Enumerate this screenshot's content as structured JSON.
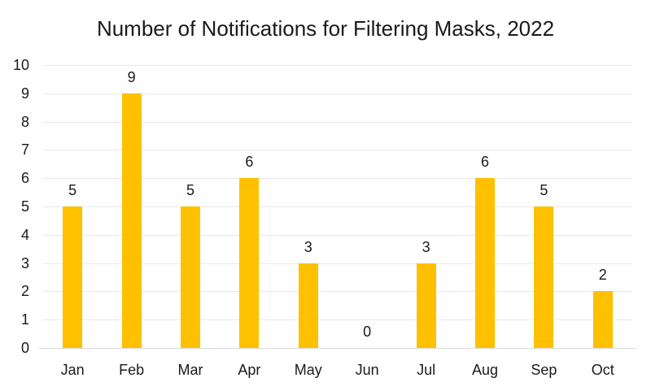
{
  "chart_data": {
    "type": "bar",
    "title": "Number of Notifications for Filtering Masks, 2022",
    "categories": [
      "Jan",
      "Feb",
      "Mar",
      "Apr",
      "May",
      "Jun",
      "Jul",
      "Aug",
      "Sep",
      "Oct"
    ],
    "values": [
      5,
      9,
      5,
      6,
      3,
      0,
      3,
      6,
      5,
      2
    ],
    "xlabel": "",
    "ylabel": "",
    "ylim": [
      0,
      10
    ],
    "yticks": [
      0,
      1,
      2,
      3,
      4,
      5,
      6,
      7,
      8,
      9,
      10
    ],
    "grid": true,
    "legend": false,
    "data_labels": true,
    "colors": {
      "bar": "#FFC000",
      "gridline": "#E8E8E8",
      "axis_line": "#D9D9D9",
      "text": "#1A1A1A"
    }
  }
}
